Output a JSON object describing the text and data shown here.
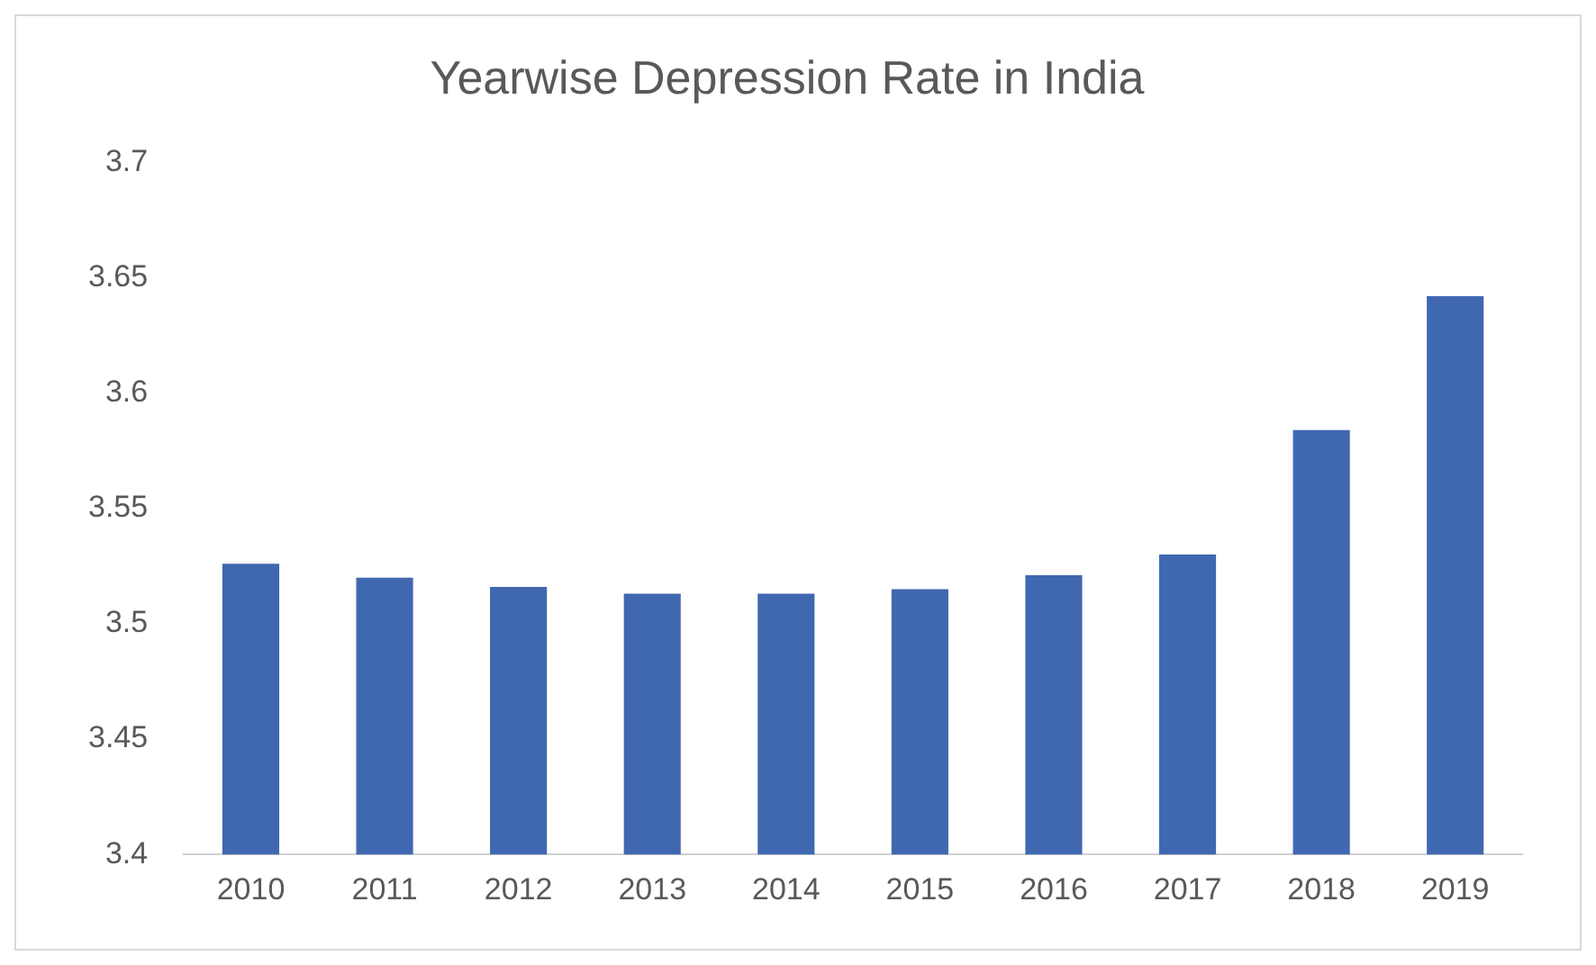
{
  "chart_data": {
    "type": "bar",
    "title": "Yearwise Depression Rate in India",
    "categories": [
      "2010",
      "2011",
      "2012",
      "2013",
      "2014",
      "2015",
      "2016",
      "2017",
      "2018",
      "2019"
    ],
    "values": [
      3.526,
      3.52,
      3.516,
      3.513,
      3.513,
      3.515,
      3.521,
      3.53,
      3.584,
      3.642
    ],
    "color": "#4068b0",
    "ylim": [
      3.4,
      3.7
    ],
    "yticks": [
      3.4,
      3.45,
      3.5,
      3.55,
      3.6,
      3.65,
      3.7
    ],
    "grid": false,
    "legend": false
  }
}
